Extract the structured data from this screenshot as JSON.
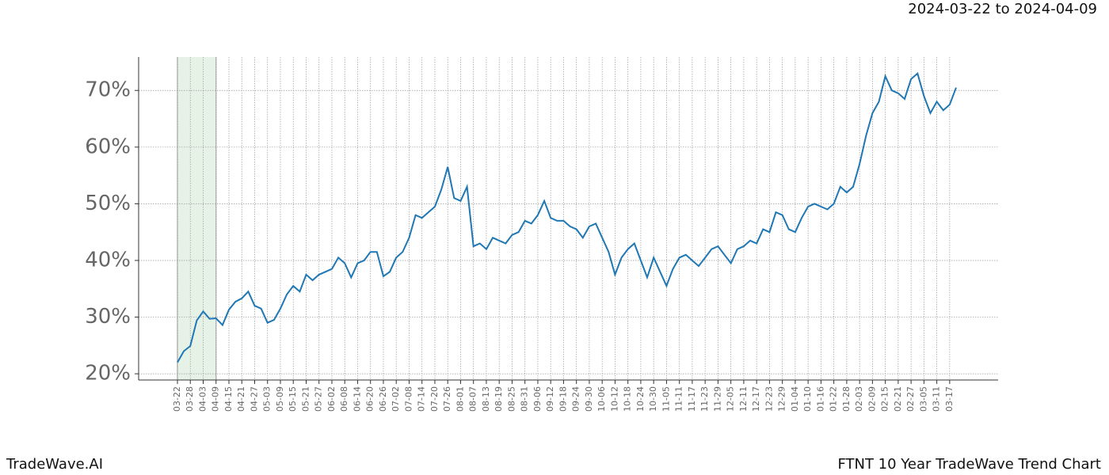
{
  "chart_data": {
    "type": "line",
    "title": "2024-03-22 to 2024-04-09",
    "footer_left": "TradeWave.AI",
    "footer_right": "FTNT 10 Year TradeWave Trend Chart",
    "x": [
      "03-22",
      "03-25",
      "03-28",
      "03-31",
      "04-03",
      "04-06",
      "04-09",
      "04-12",
      "04-15",
      "04-18",
      "04-21",
      "04-24",
      "04-27",
      "04-30",
      "05-03",
      "05-06",
      "05-09",
      "05-12",
      "05-15",
      "05-18",
      "05-21",
      "05-24",
      "05-27",
      "05-30",
      "06-02",
      "06-05",
      "06-08",
      "06-11",
      "06-14",
      "06-17",
      "06-20",
      "06-23",
      "06-26",
      "06-29",
      "07-02",
      "07-05",
      "07-08",
      "07-11",
      "07-14",
      "07-17",
      "07-20",
      "07-23",
      "07-26",
      "07-29",
      "08-01",
      "08-04",
      "08-07",
      "08-10",
      "08-13",
      "08-16",
      "08-19",
      "08-22",
      "08-25",
      "08-28",
      "08-31",
      "09-03",
      "09-06",
      "09-09",
      "09-12",
      "09-15",
      "09-18",
      "09-21",
      "09-24",
      "09-27",
      "09-30",
      "10-03",
      "10-06",
      "10-09",
      "10-12",
      "10-15",
      "10-18",
      "10-21",
      "10-24",
      "10-27",
      "10-30",
      "11-02",
      "11-05",
      "11-08",
      "11-11",
      "11-14",
      "11-17",
      "11-20",
      "11-23",
      "11-26",
      "11-29",
      "12-02",
      "12-05",
      "12-08",
      "12-11",
      "12-14",
      "12-17",
      "12-20",
      "12-23",
      "12-26",
      "12-29",
      "01-01",
      "01-04",
      "01-07",
      "01-10",
      "01-13",
      "01-16",
      "01-19",
      "01-22",
      "01-25",
      "01-28",
      "01-31",
      "02-03",
      "02-06",
      "02-09",
      "02-12",
      "02-15",
      "02-18",
      "02-21",
      "02-24",
      "02-27",
      "03-02",
      "03-05",
      "03-08",
      "03-11",
      "03-14",
      "03-17",
      "03-20"
    ],
    "xticks": [
      "03-22",
      "03-28",
      "04-03",
      "04-09",
      "04-15",
      "04-21",
      "04-27",
      "05-03",
      "05-09",
      "05-15",
      "05-21",
      "05-27",
      "06-02",
      "06-08",
      "06-14",
      "06-20",
      "06-26",
      "07-02",
      "07-08",
      "07-14",
      "07-20",
      "07-26",
      "08-01",
      "08-07",
      "08-13",
      "08-19",
      "08-25",
      "08-31",
      "09-06",
      "09-12",
      "09-18",
      "09-24",
      "09-30",
      "10-06",
      "10-12",
      "10-18",
      "10-24",
      "10-30",
      "11-05",
      "11-11",
      "11-17",
      "11-23",
      "11-29",
      "12-05",
      "12-11",
      "12-17",
      "12-23",
      "12-29",
      "01-04",
      "01-10",
      "01-16",
      "01-22",
      "01-28",
      "02-03",
      "02-09",
      "02-15",
      "02-21",
      "02-27",
      "03-05",
      "03-11",
      "03-17"
    ],
    "series": [
      {
        "color": "#1f77b4",
        "values": [
          22,
          24,
          24.9,
          29.4,
          31,
          29.7,
          29.8,
          28.6,
          31.3,
          32.7,
          33.3,
          34.5,
          32,
          31.5,
          29,
          29.5,
          31.5,
          34,
          35.5,
          34.5,
          37.5,
          36.5,
          37.5,
          38,
          38.5,
          40.5,
          39.5,
          37,
          39.5,
          40,
          41.5,
          41.5,
          37.2,
          38,
          40.5,
          41.5,
          44,
          48,
          47.5,
          48.5,
          49.5,
          52.5,
          56.5,
          51,
          50.5,
          53,
          42.5,
          43,
          42,
          44,
          43.5,
          43,
          44.5,
          45,
          47,
          46.5,
          48,
          50.5,
          47.5,
          47,
          47,
          46,
          45.5,
          44,
          46,
          46.5,
          44,
          41.5,
          37.5,
          40.5,
          42,
          43,
          40,
          37,
          40.5,
          38,
          35.5,
          38.5,
          40.5,
          41,
          40,
          39,
          40.5,
          42,
          42.5,
          41,
          39.5,
          42,
          42.5,
          43.5,
          43,
          45.5,
          45,
          48.5,
          48,
          45.5,
          45,
          47.5,
          49.5,
          50,
          49.5,
          49,
          50,
          53,
          52,
          53,
          57,
          62,
          66,
          68,
          72.5,
          70,
          69.5,
          68.5,
          72,
          73,
          69,
          66,
          68,
          66.5,
          67.5,
          70.5
        ]
      }
    ],
    "highlight": [
      "03-22",
      "04-09"
    ],
    "highlight_color": "#e6f2e6",
    "ylim": [
      18.9,
      75.9
    ],
    "yticks": [
      {
        "value": 20,
        "label": "20%"
      },
      {
        "value": 30,
        "label": "30%"
      },
      {
        "value": 40,
        "label": "40%"
      },
      {
        "value": 50,
        "label": "50%"
      },
      {
        "value": 60,
        "label": "60%"
      },
      {
        "value": 70,
        "label": "70%"
      }
    ],
    "grid": true
  }
}
